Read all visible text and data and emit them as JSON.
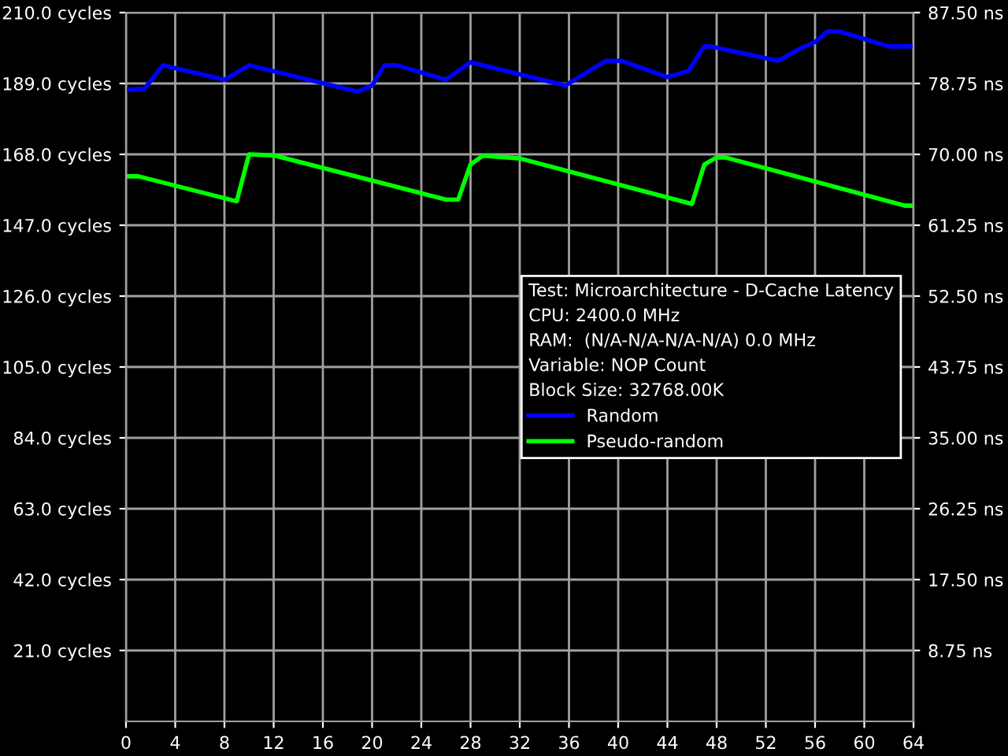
{
  "chart_data": {
    "type": "line",
    "title": "Test: Microarchitecture - D-Cache Latency",
    "annotations": [
      "CPU: 2400.0 MHz",
      "RAM:  (N/A-N/A-N/A-N/A) 0.0 MHz",
      "Variable: NOP Count",
      "Block Size: 32768.00K"
    ],
    "series": [
      {
        "name": "Random",
        "color": "#0000ff",
        "x": [
          0,
          1.5,
          3,
          8,
          10,
          18.8,
          20,
          21,
          22,
          26,
          28,
          30,
          35.7,
          39,
          40.3,
          44,
          45.7,
          47,
          47.5,
          53,
          54.7,
          56,
          57,
          58,
          62,
          64
        ],
        "values": [
          187.1,
          187.5,
          194.4,
          190.1,
          194.4,
          186.6,
          188.4,
          194.4,
          194.4,
          190.1,
          195.3,
          193.5,
          188.4,
          195.7,
          195.7,
          190.9,
          192.7,
          200,
          200,
          195.7,
          199.2,
          201.3,
          204.4,
          204.4,
          200,
          200
        ]
      },
      {
        "name": "Pseudo-random",
        "color": "#00ff00",
        "x": [
          0,
          1,
          9,
          10,
          12,
          26,
          27,
          28,
          29,
          32,
          46,
          47,
          48,
          48.7,
          63.3,
          64
        ],
        "values": [
          161.5,
          161.5,
          154.1,
          168,
          167.7,
          154.6,
          154.6,
          165,
          167.6,
          166.8,
          153.3,
          165,
          167.1,
          167.1,
          152.8,
          152.8
        ]
      }
    ],
    "xlim": [
      0,
      64
    ],
    "xticks": [
      0,
      4,
      8,
      12,
      16,
      20,
      24,
      28,
      32,
      36,
      40,
      44,
      48,
      52,
      56,
      60,
      64
    ],
    "ylim": [
      0,
      210
    ],
    "yticks": [
      {
        "value": 21,
        "label": "21.0 cycles"
      },
      {
        "value": 42,
        "label": "42.0 cycles"
      },
      {
        "value": 63,
        "label": "63.0 cycles"
      },
      {
        "value": 84,
        "label": "84.0 cycles"
      },
      {
        "value": 105,
        "label": "105.0 cycles"
      },
      {
        "value": 126,
        "label": "126.0 cycles"
      },
      {
        "value": 147,
        "label": "147.0 cycles"
      },
      {
        "value": 168,
        "label": "168.0 cycles"
      },
      {
        "value": 189,
        "label": "189.0 cycles"
      },
      {
        "value": 210,
        "label": "210.0 cycles"
      }
    ],
    "y2lim": [
      0,
      87.5
    ],
    "y2ticks": [
      {
        "value": 8.75,
        "label": "8.75 ns"
      },
      {
        "value": 17.5,
        "label": "17.50 ns"
      },
      {
        "value": 26.25,
        "label": "26.25 ns"
      },
      {
        "value": 35,
        "label": "35.00 ns"
      },
      {
        "value": 43.75,
        "label": "43.75 ns"
      },
      {
        "value": 52.5,
        "label": "52.50 ns"
      },
      {
        "value": 61.25,
        "label": "61.25 ns"
      },
      {
        "value": 70,
        "label": "70.00 ns"
      },
      {
        "value": 78.75,
        "label": "78.75 ns"
      },
      {
        "value": 87.5,
        "label": "87.50 ns"
      }
    ],
    "grid": true,
    "legend": "center right",
    "marker": "none",
    "line_style": "solid"
  }
}
